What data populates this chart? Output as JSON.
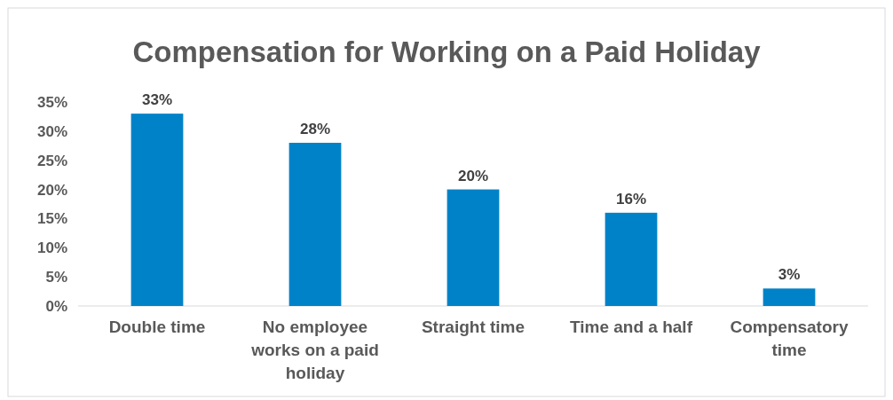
{
  "chart_data": {
    "type": "bar",
    "title": "Compensation for Working on a Paid Holiday",
    "categories": [
      "Double time",
      "No employee works on a paid holiday",
      "Straight time",
      "Time and a half",
      "Compensatory time"
    ],
    "values": [
      33,
      28,
      20,
      16,
      3
    ],
    "color": "#0082c8",
    "data_labels": true,
    "value_labels": [
      "33%",
      "28%",
      "20%",
      "16%",
      "3%"
    ],
    "ylim": [
      0,
      35
    ],
    "yticks": [
      {
        "value": 0,
        "label": "0%"
      },
      {
        "value": 5,
        "label": "5%"
      },
      {
        "value": 10,
        "label": "10%"
      },
      {
        "value": 15,
        "label": "15%"
      },
      {
        "value": 20,
        "label": "20%"
      },
      {
        "value": 25,
        "label": "25%"
      },
      {
        "value": 30,
        "label": "30%"
      },
      {
        "value": 35,
        "label": "35%"
      }
    ],
    "grid": false
  }
}
